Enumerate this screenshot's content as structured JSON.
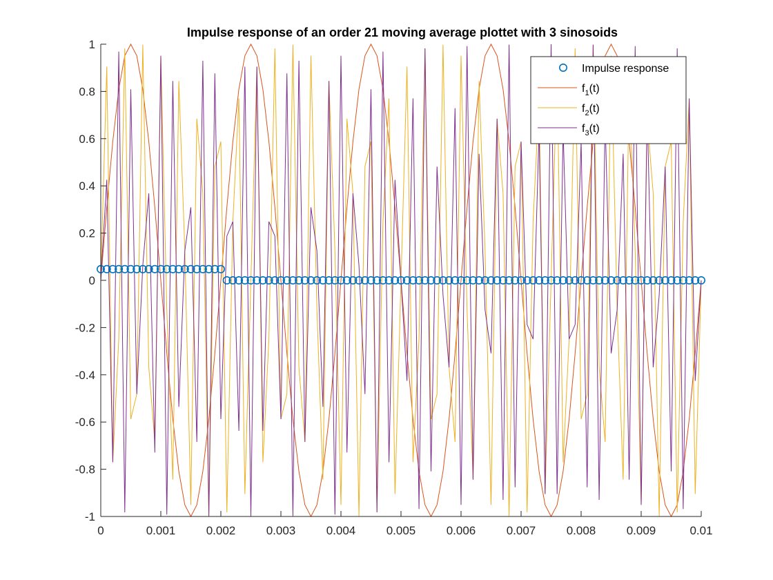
{
  "chart_data": {
    "type": "line",
    "title": "Impulse response of an order 21 moving average plottet with 3 sinosoids",
    "xlabel": "",
    "ylabel": "",
    "xlim": [
      0,
      0.01
    ],
    "ylim": [
      -1,
      1
    ],
    "xticks": [
      0,
      0.001,
      0.002,
      0.003,
      0.004,
      0.005,
      0.006,
      0.007,
      0.008,
      0.009,
      0.01
    ],
    "xtick_labels": [
      "0",
      "0.001",
      "0.002",
      "0.003",
      "0.004",
      "0.005",
      "0.006",
      "0.007",
      "0.008",
      "0.009",
      "0.01"
    ],
    "yticks": [
      -1,
      -0.8,
      -0.6,
      -0.4,
      -0.2,
      0,
      0.2,
      0.4,
      0.6,
      0.8,
      1
    ],
    "ytick_labels": [
      "-1",
      "-0.8",
      "-0.6",
      "-0.4",
      "-0.2",
      "0",
      "0.2",
      "0.4",
      "0.6",
      "0.8",
      "1"
    ],
    "grid": false,
    "legend_position": "top-right",
    "sample_interval": 0.0001,
    "n_samples": 101,
    "series": [
      {
        "legend_base": "Impulse response",
        "legend_sub": "",
        "legend_suffix": "",
        "style": "markers",
        "color": "#0072BD",
        "value_first": 0.0476,
        "first_count": 21,
        "value_rest": 0
      },
      {
        "legend_base": "f",
        "legend_sub": "1",
        "legend_suffix": "(t)",
        "style": "line",
        "color": "#D95319",
        "frequency_hz": 500
      },
      {
        "legend_base": "f",
        "legend_sub": "2",
        "legend_suffix": "(t)",
        "style": "line",
        "color": "#EDB120",
        "frequency_hz": 3200
      },
      {
        "legend_base": "f",
        "legend_sub": "3",
        "legend_suffix": "(t)",
        "style": "line",
        "color": "#7E2F8E",
        "frequency_hz": 4300
      }
    ]
  }
}
